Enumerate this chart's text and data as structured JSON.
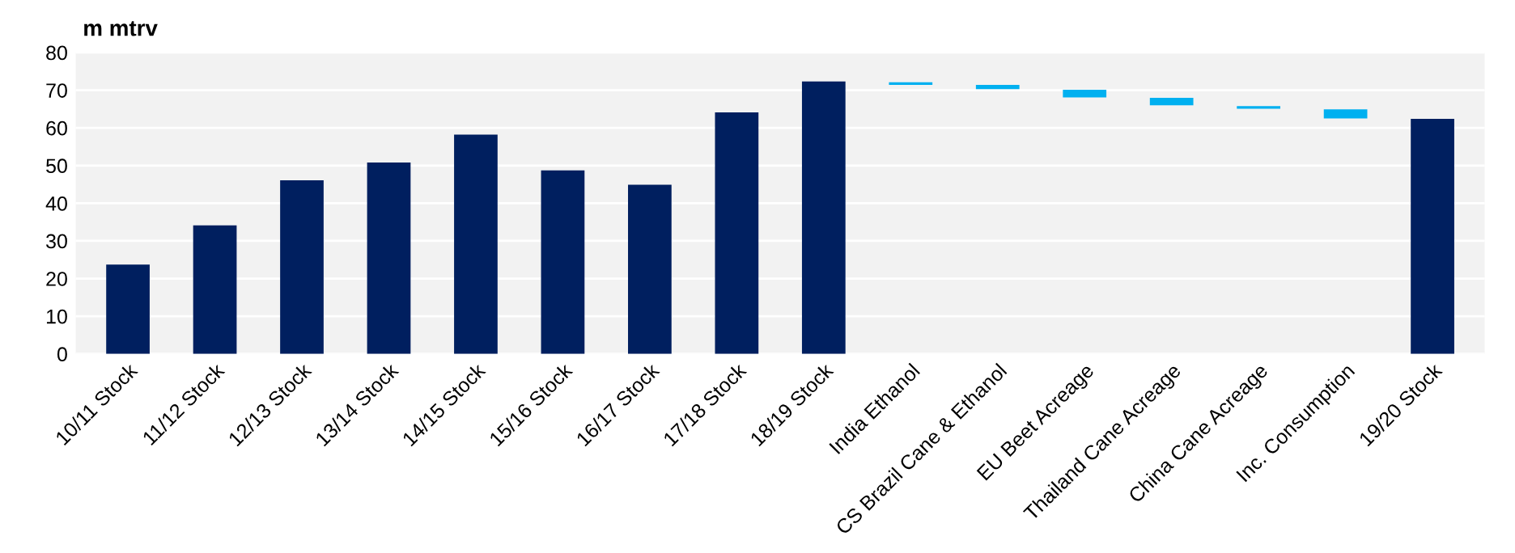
{
  "chart_data": {
    "type": "bar",
    "ylabel": "m mtrv",
    "categories": [
      "10/11 Stock",
      "11/12 Stock",
      "12/13 Stock",
      "13/14 Stock",
      "14/15 Stock",
      "15/16 Stock",
      "16/17 Stock",
      "17/18 Stock",
      "18/19 Stock",
      "India Ethanol",
      "CS Brazil Cane & Ethanol",
      "EU Beet Acreage",
      "Thailand Cane Acreage",
      "China Cane Acreage",
      "Inc. Consumption",
      "19/20 Stock"
    ],
    "values": [
      23.7,
      34.1,
      46.1,
      50.8,
      58.2,
      48.7,
      44.9,
      64.1,
      72.3,
      0.7,
      1.1,
      2.0,
      2.0,
      0.7,
      2.4,
      62.4
    ],
    "base": [
      0,
      0,
      0,
      0,
      0,
      0,
      0,
      0,
      0,
      71.4,
      70.3,
      68.1,
      66.0,
      65.1,
      62.5,
      0
    ],
    "colors": [
      "#001f5f",
      "#001f5f",
      "#001f5f",
      "#001f5f",
      "#001f5f",
      "#001f5f",
      "#001f5f",
      "#001f5f",
      "#001f5f",
      "#00b0f0",
      "#00b0f0",
      "#00b0f0",
      "#00b0f0",
      "#00b0f0",
      "#00b0f0",
      "#001f5f"
    ],
    "ylim": [
      0,
      80
    ],
    "yticks": [
      0,
      10,
      20,
      30,
      40,
      50,
      60,
      70,
      80
    ],
    "grid": "y",
    "legend": false
  }
}
